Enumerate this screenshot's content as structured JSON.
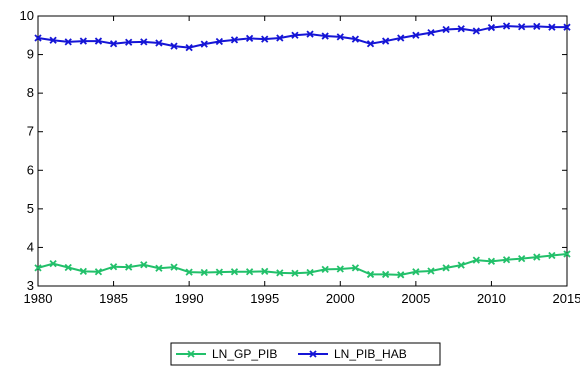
{
  "chart_data": {
    "type": "line",
    "x": [
      1980,
      1981,
      1982,
      1983,
      1984,
      1985,
      1986,
      1987,
      1988,
      1989,
      1990,
      1991,
      1992,
      1993,
      1994,
      1995,
      1996,
      1997,
      1998,
      1999,
      2000,
      2001,
      2002,
      2003,
      2004,
      2005,
      2006,
      2007,
      2008,
      2009,
      2010,
      2011,
      2012,
      2013,
      2014,
      2015
    ],
    "xlim": [
      1980,
      2015
    ],
    "ylim": [
      3,
      10
    ],
    "x_ticks": [
      1980,
      1985,
      1990,
      1995,
      2000,
      2005,
      2010,
      2015
    ],
    "y_ticks": [
      3,
      4,
      5,
      6,
      7,
      8,
      9,
      10
    ],
    "grid": false,
    "legend_position": "bottom-center",
    "series": [
      {
        "name": "LN_GP_PIB",
        "color": "#22c06a",
        "marker": "x",
        "values": [
          3.47,
          3.58,
          3.48,
          3.38,
          3.37,
          3.5,
          3.49,
          3.55,
          3.46,
          3.49,
          3.36,
          3.35,
          3.36,
          3.37,
          3.37,
          3.38,
          3.34,
          3.33,
          3.35,
          3.43,
          3.44,
          3.47,
          3.3,
          3.3,
          3.29,
          3.37,
          3.39,
          3.47,
          3.54,
          3.67,
          3.64,
          3.68,
          3.71,
          3.75,
          3.79,
          3.83
        ]
      },
      {
        "name": "LN_PIB_HAB",
        "color": "#1515d6",
        "marker": "x",
        "values": [
          9.43,
          9.37,
          9.33,
          9.35,
          9.35,
          9.28,
          9.32,
          9.33,
          9.3,
          9.22,
          9.18,
          9.27,
          9.34,
          9.38,
          9.42,
          9.4,
          9.43,
          9.5,
          9.53,
          9.48,
          9.46,
          9.4,
          9.28,
          9.35,
          9.43,
          9.5,
          9.57,
          9.65,
          9.67,
          9.61,
          9.7,
          9.74,
          9.72,
          9.73,
          9.71,
          9.71
        ]
      }
    ]
  }
}
